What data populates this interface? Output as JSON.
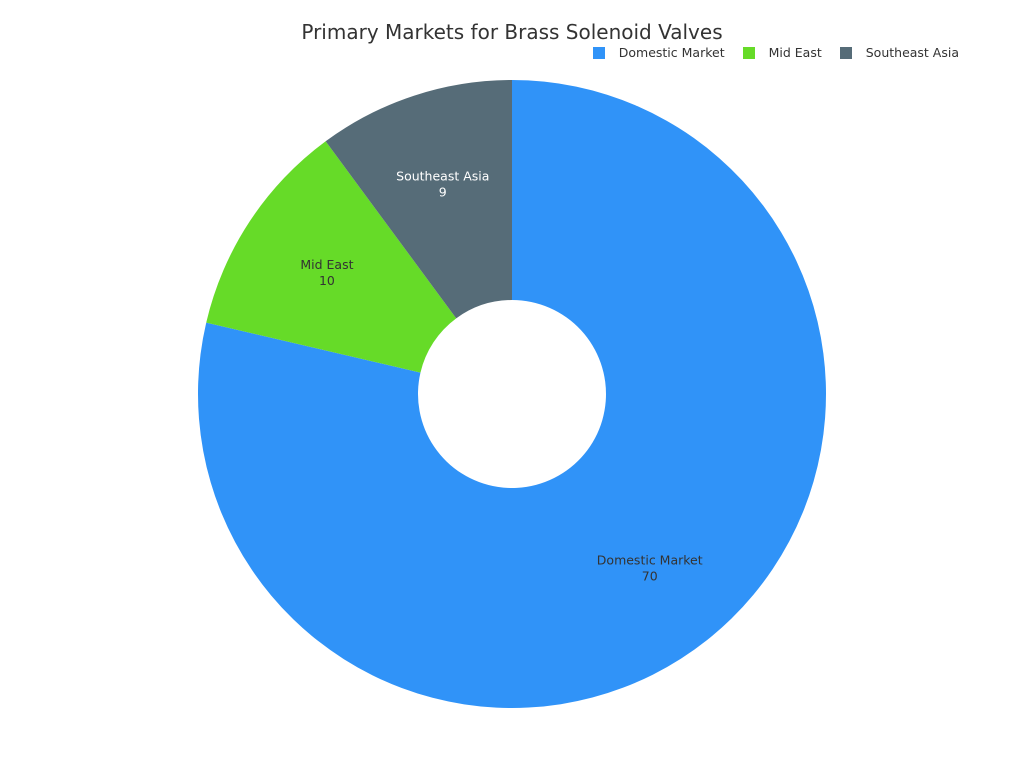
{
  "chart_data": {
    "type": "pie",
    "title": "Primary Markets for Brass Solenoid Valves",
    "donut": true,
    "legend_position": "top-right",
    "categories": [
      "Domestic Market",
      "Mid East",
      "Southeast Asia"
    ],
    "values": [
      70,
      10,
      9
    ],
    "colors": [
      "#3093f8",
      "#66db28",
      "#566c78"
    ],
    "label_colors": [
      "#333333",
      "#333333",
      "#ffffff"
    ]
  }
}
